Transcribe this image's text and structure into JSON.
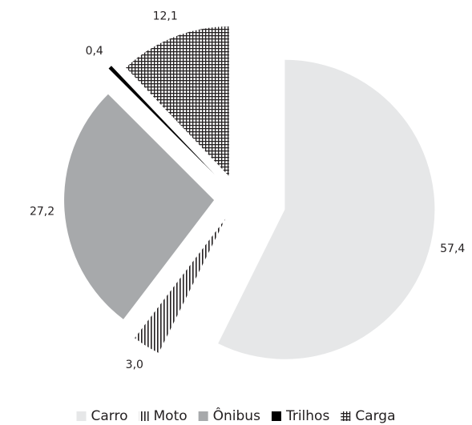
{
  "chart_data": {
    "type": "pie",
    "categories": [
      "Carro",
      "Moto",
      "Ônibus",
      "Trilhos",
      "Carga"
    ],
    "values": [
      57.4,
      3.0,
      27.2,
      0.4,
      12.1
    ],
    "value_labels": [
      "57,4",
      "3,0",
      "27,2",
      "0,4",
      "12,1"
    ],
    "colors": [
      "#e6e7e8",
      "#231f20",
      "#a7a9ab",
      "#000000",
      "#231f20"
    ],
    "patterns": [
      "solid",
      "vertical-lines",
      "solid",
      "solid",
      "grid"
    ],
    "legend": "bottom"
  }
}
